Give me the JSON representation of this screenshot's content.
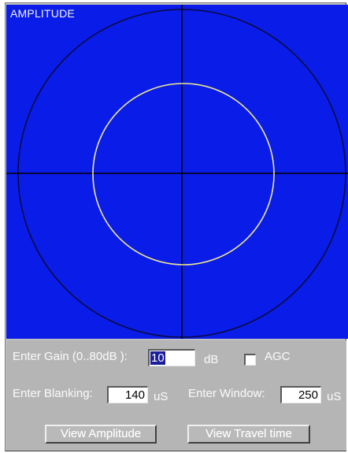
{
  "plot": {
    "title": "AMPLITUDE",
    "background": "#0a1de8",
    "outer_circle_color": "#0a0a40",
    "inner_circle_color": "#f0e890",
    "crosshair_color": "#000000"
  },
  "controls": {
    "gain": {
      "label": "Enter Gain (0..80dB ):",
      "value": "10",
      "unit": "dB"
    },
    "agc": {
      "label": "AGC",
      "checked": false
    },
    "blanking": {
      "label": "Enter Blanking:",
      "value": "140",
      "unit": "uS"
    },
    "window": {
      "label": "Enter Window:",
      "value": "250",
      "unit": "uS"
    },
    "buttons": {
      "view_amplitude": "View Amplitude",
      "view_travel_time": "View Travel time"
    }
  }
}
